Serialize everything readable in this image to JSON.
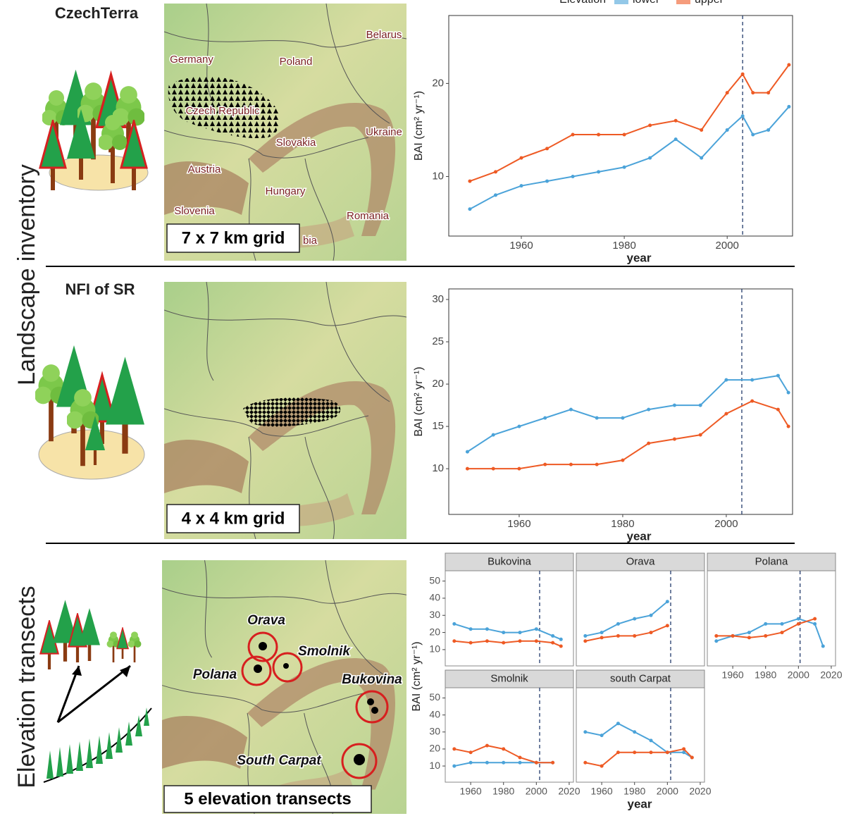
{
  "figure": {
    "side_labels": [
      "Landscape inventory",
      "Elevation transects"
    ],
    "panels": [
      {
        "title": "CzechTerra",
        "map_labels": [
          "Belarus",
          "Germany",
          "Poland",
          "Czech Republic",
          "Ukraine",
          "Slovakia",
          "Austria",
          "Hungary",
          "Slovenia",
          "Romania",
          "bia"
        ],
        "grid_label": "7 x 7 km grid"
      },
      {
        "title": "NFI of SR",
        "grid_label": "4 x 4 km grid"
      },
      {
        "grid_label": "5 elevation transects",
        "site_labels": [
          "Orava",
          "Smolnik",
          "Polana",
          "Bukovina",
          "South Carpat"
        ]
      }
    ]
  },
  "chart_data": [
    {
      "type": "line",
      "y_label": "BAI (cm² yr⁻¹)",
      "x_label": "year",
      "legend_title": "Elevation",
      "x": [
        1950,
        1955,
        1960,
        1965,
        1970,
        1975,
        1980,
        1985,
        1990,
        1995,
        2000,
        2003,
        2005,
        2008,
        2012
      ],
      "series": [
        {
          "name": "lower",
          "color": "#4ba3d9",
          "values": [
            6.5,
            8,
            9,
            9.5,
            10,
            10.5,
            11,
            12,
            14,
            12,
            15,
            16.5,
            14.5,
            15,
            17.5
          ]
        },
        {
          "name": "upper",
          "color": "#ee5a24",
          "values": [
            9.5,
            10.5,
            12,
            13,
            14.5,
            14.5,
            14.5,
            15.5,
            16,
            15,
            19,
            21,
            19,
            19,
            22
          ]
        }
      ],
      "xlim": [
        1945.9,
        2012.7
      ],
      "xticks": [
        1960,
        1980,
        2000
      ],
      "ylim": [
        3.6,
        27.3
      ],
      "yticks": [
        10,
        20
      ],
      "vline": 2003
    },
    {
      "type": "line",
      "y_label": "BAI (cm² yr⁻¹)",
      "x_label": "year",
      "x": [
        1950,
        1955,
        1960,
        1965,
        1970,
        1975,
        1980,
        1985,
        1990,
        1995,
        2000,
        2005,
        2010,
        2012
      ],
      "series": [
        {
          "color": "#4ba3d9",
          "values": [
            12,
            14,
            15,
            16,
            17,
            16,
            16,
            17,
            17.5,
            17.5,
            20.5,
            20.5,
            21,
            19
          ]
        },
        {
          "color": "#ee5a24",
          "values": [
            10,
            10,
            10,
            10.5,
            10.5,
            10.5,
            11,
            13,
            13.5,
            14,
            16.5,
            18,
            17,
            15
          ]
        }
      ],
      "xlim": [
        1946.4,
        2012.8
      ],
      "xticks": [
        1960,
        1980,
        2000
      ],
      "ylim": [
        4.6,
        31.25
      ],
      "yticks": [
        10,
        15,
        20,
        25,
        30
      ],
      "vline": 2003
    },
    {
      "type": "line",
      "y_label": "BAI (cm² yr⁻¹)",
      "x_label": "year",
      "x": [
        1950,
        1960,
        1970,
        1980,
        1990,
        2000,
        2010,
        2015
      ],
      "xlim": [
        1944.5,
        2022.6
      ],
      "xticks": [
        1960,
        1980,
        2000,
        2020
      ],
      "ylim": [
        0.5,
        56
      ],
      "yticks": [
        10,
        20,
        30,
        40,
        50
      ],
      "panels": [
        {
          "title": "Bukovina",
          "vline": 2002,
          "series": [
            {
              "color": "#4ba3d9",
              "values": [
                25,
                22,
                22,
                20,
                20,
                22,
                18,
                16
              ]
            },
            {
              "color": "#ee5a24",
              "values": [
                15,
                14,
                15,
                14,
                15,
                15,
                14,
                12
              ]
            }
          ]
        },
        {
          "title": "Orava",
          "vline": 2002,
          "series": [
            {
              "color": "#4ba3d9",
              "values": [
                18,
                20,
                25,
                28,
                30,
                38,
                null,
                null
              ]
            },
            {
              "color": "#ee5a24",
              "values": [
                15,
                17,
                18,
                18,
                20,
                24,
                null,
                null
              ]
            }
          ]
        },
        {
          "title": "Polana",
          "vline": 2001,
          "series": [
            {
              "color": "#4ba3d9",
              "values": [
                15,
                18,
                20,
                25,
                25,
                28,
                25,
                12
              ]
            },
            {
              "color": "#ee5a24",
              "values": [
                18,
                18,
                17,
                18,
                20,
                25,
                28,
                null
              ]
            }
          ]
        },
        {
          "title": "Smolnik",
          "vline": 2002,
          "series": [
            {
              "color": "#4ba3d9",
              "values": [
                10,
                12,
                12,
                12,
                12,
                12,
                12,
                null
              ]
            },
            {
              "color": "#ee5a24",
              "values": [
                20,
                18,
                22,
                20,
                15,
                12,
                12,
                null
              ]
            }
          ]
        },
        {
          "title": "south Carpat",
          "vline": 2002,
          "series": [
            {
              "color": "#4ba3d9",
              "values": [
                30,
                28,
                35,
                30,
                25,
                18,
                18,
                15
              ]
            },
            {
              "color": "#ee5a24",
              "values": [
                12,
                10,
                18,
                18,
                18,
                18,
                20,
                15
              ]
            }
          ]
        }
      ]
    }
  ]
}
